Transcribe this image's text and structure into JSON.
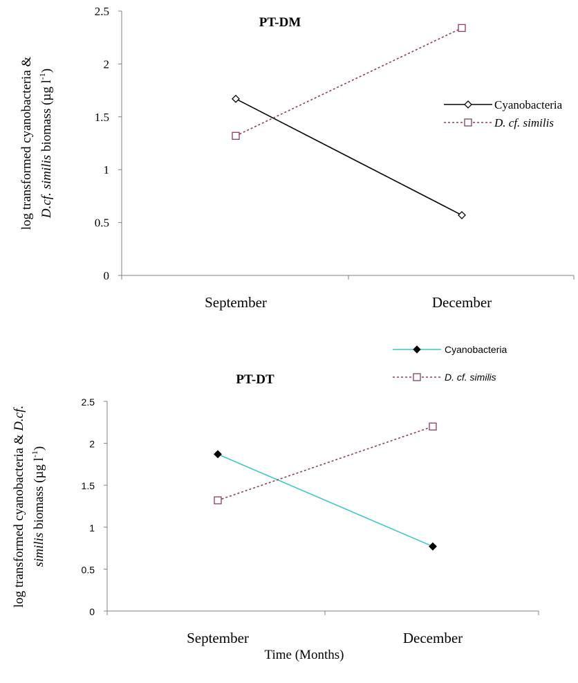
{
  "figure": {
    "xlabel_shared": "Time (Months)"
  },
  "chart_data": [
    {
      "type": "line",
      "title": "PT-DM",
      "categories": [
        "September",
        "December"
      ],
      "ylim": [
        0,
        2.5
      ],
      "yticks": [
        "0",
        "0.5",
        "1",
        "1.5",
        "2",
        "2.5"
      ],
      "ylabel_line1": "log transformed cyanobacteria &",
      "ylabel_line2_italic": "D.cf. similis",
      "ylabel_line2_rest": " biomass (µg l",
      "ylabel_sup": "-1",
      "ylabel_close": ")",
      "legend_position": "right",
      "series": [
        {
          "name": "Cyanobacteria",
          "values": [
            1.67,
            0.57
          ],
          "color": "#000000",
          "marker": "diamond-open",
          "dash": "solid"
        },
        {
          "name": "D. cf. similis",
          "values": [
            1.32,
            2.34
          ],
          "color": "#8B3A62",
          "marker": "square-open",
          "dash": "dotted"
        }
      ]
    },
    {
      "type": "line",
      "title": "PT-DT",
      "categories": [
        "September",
        "December"
      ],
      "ylim": [
        0,
        2.5
      ],
      "yticks": [
        "0",
        "0.5",
        "1",
        "1.5",
        "2",
        "2.5"
      ],
      "ylabel_line1_rest": "log transformed cyanobacteria & ",
      "ylabel_line1_italic": "D.cf.",
      "ylabel_line2_italic": "similis",
      "ylabel_line2_rest": " biomass (µg l",
      "ylabel_sup": "-1",
      "ylabel_close": ")",
      "legend_position": "top-right",
      "series": [
        {
          "name": "Cyanobacteria",
          "values": [
            1.87,
            0.77
          ],
          "color": "#3CC8C8",
          "marker": "diamond-filled",
          "dash": "solid"
        },
        {
          "name": "D. cf. similis",
          "values": [
            1.32,
            2.2
          ],
          "color": "#8B3A62",
          "marker": "square-open",
          "dash": "dotted"
        }
      ]
    }
  ]
}
